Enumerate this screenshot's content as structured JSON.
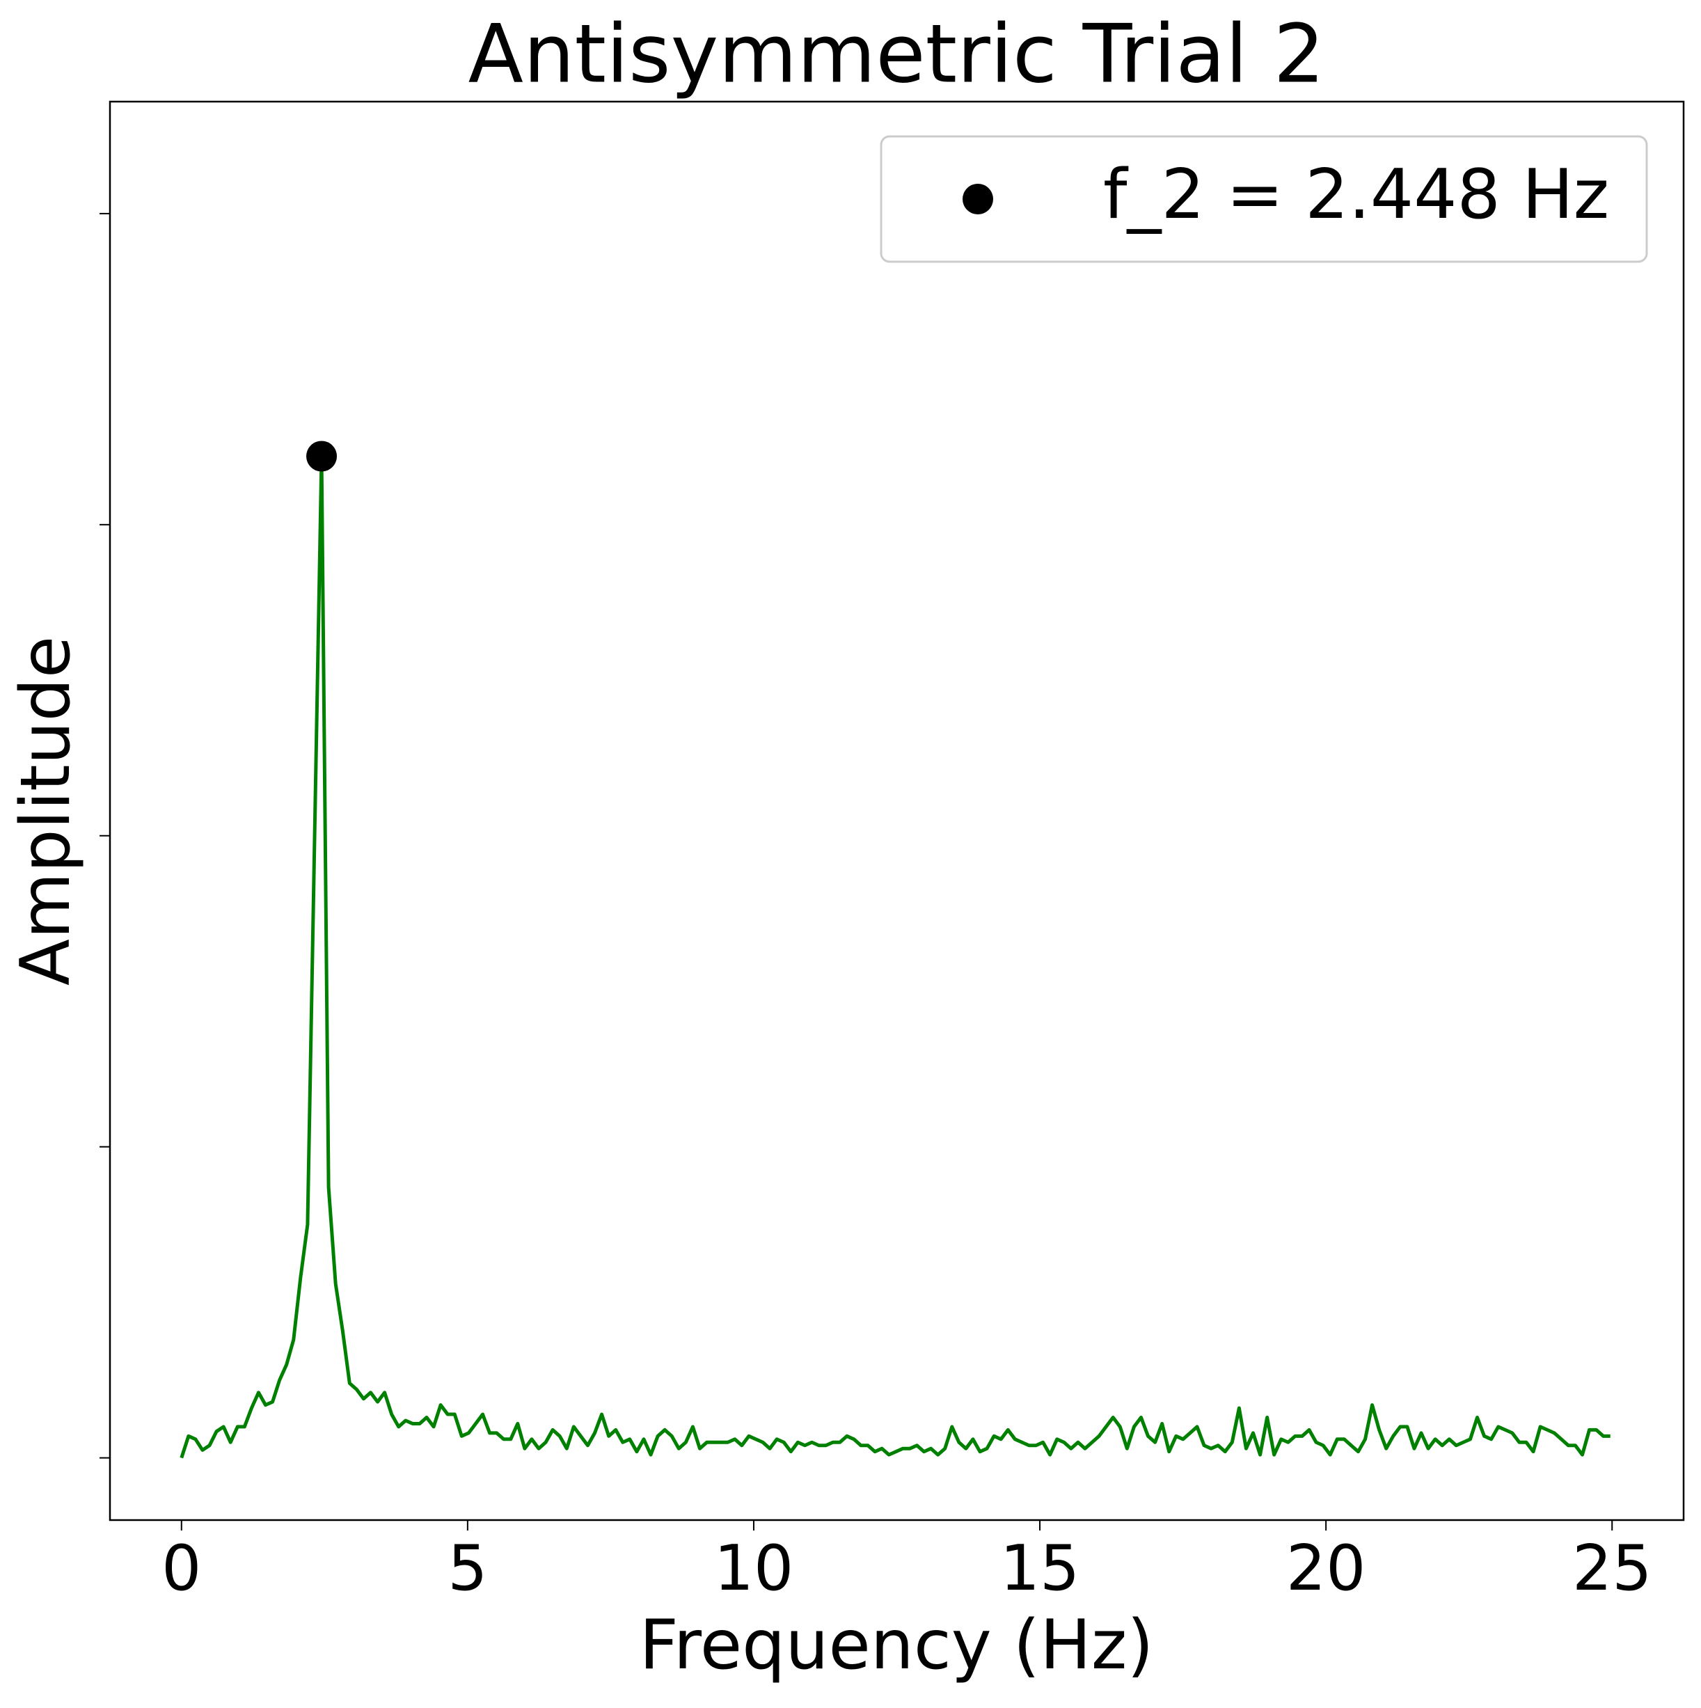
{
  "chart_data": {
    "type": "line",
    "title": "Antisymmetric Trial 2",
    "x_label": "Frequency (Hz)",
    "y_label": "Amplitude",
    "xlim": [
      -1.25,
      26.25
    ],
    "xticks": [
      0,
      5,
      10,
      15,
      20,
      25
    ],
    "ylim": [
      -0.2,
      4.36
    ],
    "yticks": [
      0,
      1,
      2,
      3,
      4
    ],
    "ytick_labels": false,
    "legend": "upper right",
    "series": [
      {
        "type": "line",
        "color": "green",
        "x": [
          0,
          0.1224,
          0.2448,
          0.3672,
          0.4896,
          0.612,
          0.7344,
          0.8568,
          0.9792,
          1.1016,
          1.224,
          1.3464,
          1.4688,
          1.5912,
          1.7136,
          1.836,
          1.9584,
          2.0808,
          2.2032,
          2.3256,
          2.448,
          2.5704,
          2.6928,
          2.8152,
          2.9376,
          3.06,
          3.1824,
          3.3048,
          3.4272,
          3.5496,
          3.672,
          3.7944,
          3.9168,
          4.0392,
          4.1616,
          4.284,
          4.4064,
          4.5288,
          4.6512,
          4.7736,
          4.896,
          5.0184,
          5.1408,
          5.2632,
          5.3856,
          5.508,
          5.6304,
          5.7528,
          5.8752,
          5.9976,
          6.12,
          6.2424,
          6.3648,
          6.4872,
          6.6096,
          6.732,
          6.8544,
          6.9768,
          7.0992,
          7.2216,
          7.344,
          7.4664,
          7.5888,
          7.7112,
          7.8336,
          7.956,
          8.0784,
          8.2008,
          8.3232,
          8.4456,
          8.568,
          8.6904,
          8.8128,
          8.9352,
          9.0576,
          9.18,
          9.3024,
          9.4248,
          9.5472,
          9.6696,
          9.792,
          9.9144,
          10.0368,
          10.1592,
          10.2816,
          10.404,
          10.5264,
          10.6488,
          10.7712,
          10.8936,
          11.016,
          11.1384,
          11.2608,
          11.3832,
          11.5056,
          11.628,
          11.7504,
          11.8728,
          11.9952,
          12.1176,
          12.24,
          12.3624,
          12.4848,
          12.6072,
          12.7296,
          12.852,
          12.9744,
          13.0968,
          13.2192,
          13.3416,
          13.464,
          13.5864,
          13.7088,
          13.8312,
          13.9536,
          14.076,
          14.1984,
          14.3208,
          14.4432,
          14.5656,
          14.688,
          14.8104,
          14.9328,
          15.0552,
          15.1776,
          15.3,
          15.4224,
          15.5448,
          15.6672,
          15.7896,
          15.912,
          16.0344,
          16.1568,
          16.2792,
          16.4016,
          16.524,
          16.6464,
          16.7688,
          16.8912,
          17.0136,
          17.136,
          17.2584,
          17.3808,
          17.5032,
          17.6256,
          17.748,
          17.8704,
          17.9928,
          18.1152,
          18.2376,
          18.36,
          18.4824,
          18.6048,
          18.7272,
          18.8496,
          18.972,
          19.0944,
          19.2168,
          19.3392,
          19.4616,
          19.584,
          19.7064,
          19.8288,
          19.9512,
          20.0736,
          20.196,
          20.3184,
          20.4408,
          20.5632,
          20.6856,
          20.808,
          20.9304,
          21.0528,
          21.1752,
          21.2976,
          21.42,
          21.5424,
          21.6648,
          21.7872,
          21.9096,
          22.032,
          22.1544,
          22.2768,
          22.3992,
          22.5216,
          22.644,
          22.7664,
          22.8888,
          23.0112,
          23.1336,
          23.256,
          23.3784,
          23.5008,
          23.6232,
          23.7456,
          23.868,
          23.9904,
          24.1128,
          24.2352,
          24.3576,
          24.48,
          24.6024,
          24.7248,
          24.8472,
          24.9696
        ],
        "values": [
          0,
          0.07,
          0.06,
          0.025,
          0.04,
          0.085,
          0.1,
          0.05,
          0.1,
          0.1,
          0.16,
          0.21,
          0.17,
          0.18,
          0.25,
          0.3,
          0.38,
          0.58,
          0.75,
          1.99,
          3.22,
          0.87,
          0.56,
          0.41,
          0.24,
          0.22,
          0.19,
          0.21,
          0.18,
          0.21,
          0.14,
          0.1,
          0.12,
          0.11,
          0.11,
          0.13,
          0.1,
          0.17,
          0.14,
          0.14,
          0.07,
          0.08,
          0.11,
          0.14,
          0.08,
          0.08,
          0.06,
          0.06,
          0.11,
          0.03,
          0.06,
          0.03,
          0.05,
          0.09,
          0.07,
          0.03,
          0.1,
          0.07,
          0.04,
          0.08,
          0.14,
          0.07,
          0.09,
          0.05,
          0.06,
          0.02,
          0.06,
          0.01,
          0.07,
          0.09,
          0.07,
          0.03,
          0.05,
          0.1,
          0.03,
          0.05,
          0.05,
          0.05,
          0.05,
          0.06,
          0.04,
          0.07,
          0.06,
          0.05,
          0.03,
          0.06,
          0.05,
          0.02,
          0.05,
          0.04,
          0.05,
          0.04,
          0.04,
          0.05,
          0.05,
          0.07,
          0.06,
          0.04,
          0.04,
          0.02,
          0.03,
          0.01,
          0.02,
          0.03,
          0.03,
          0.04,
          0.02,
          0.03,
          0.01,
          0.03,
          0.1,
          0.05,
          0.03,
          0.06,
          0.02,
          0.03,
          0.07,
          0.06,
          0.09,
          0.06,
          0.05,
          0.04,
          0.04,
          0.05,
          0.01,
          0.06,
          0.05,
          0.03,
          0.05,
          0.03,
          0.05,
          0.07,
          0.1,
          0.13,
          0.1,
          0.03,
          0.1,
          0.13,
          0.07,
          0.05,
          0.11,
          0.02,
          0.07,
          0.06,
          0.08,
          0.1,
          0.04,
          0.03,
          0.04,
          0.02,
          0.05,
          0.16,
          0.03,
          0.08,
          0.01,
          0.13,
          0.01,
          0.06,
          0.05,
          0.07,
          0.07,
          0.09,
          0.05,
          0.04,
          0.01,
          0.06,
          0.06,
          0.04,
          0.02,
          0.06,
          0.17,
          0.09,
          0.03,
          0.07,
          0.1,
          0.1,
          0.03,
          0.08,
          0.03,
          0.06,
          0.04,
          0.06,
          0.04,
          0.05,
          0.06,
          0.13,
          0.07,
          0.06,
          0.1,
          0.09,
          0.08,
          0.05,
          0.05,
          0.02,
          0.1,
          0.09,
          0.08,
          0.06,
          0.04,
          0.04,
          0.01,
          0.09,
          0.09,
          0.07,
          0.07
        ]
      },
      {
        "type": "scatter",
        "name": "f_2 = 2.448 Hz",
        "color": "black",
        "x": [
          2.448
        ],
        "values": [
          3.22
        ]
      }
    ]
  }
}
